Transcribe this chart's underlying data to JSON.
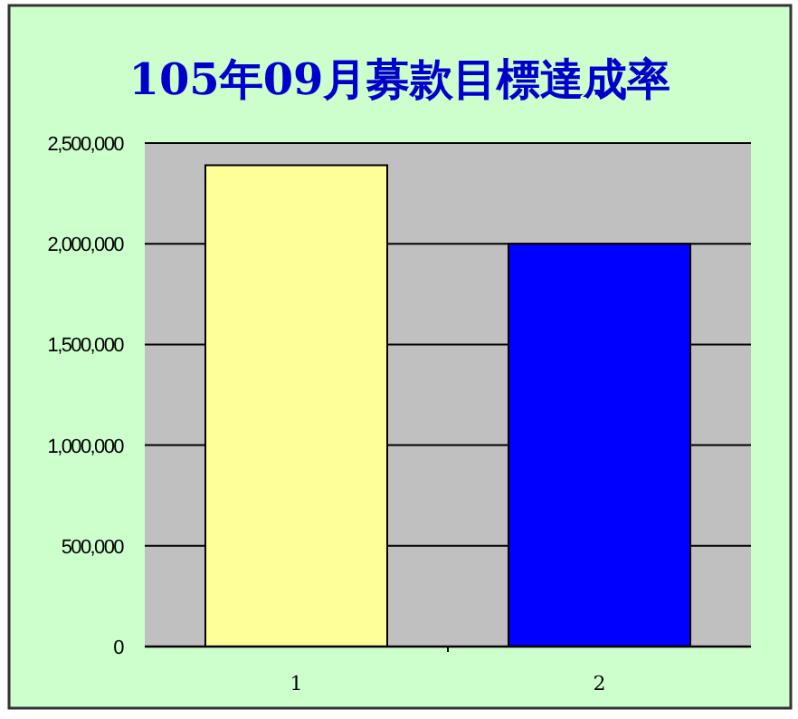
{
  "chart_data": {
    "type": "bar",
    "title": "105年09月募款目標達成率",
    "categories": [
      "1",
      "2"
    ],
    "values": [
      2390000,
      2000000
    ],
    "colors": [
      "#ffff99",
      "#0000ff"
    ],
    "ylim": [
      0,
      2500000
    ],
    "yticks": [
      {
        "value": 0,
        "label": "0"
      },
      {
        "value": 500000,
        "label": "500,000"
      },
      {
        "value": 1000000,
        "label": "1,000,000"
      },
      {
        "value": 1500000,
        "label": "1,500,000"
      },
      {
        "value": 2000000,
        "label": "2,000,000"
      },
      {
        "value": 2500000,
        "label": "2,500,000"
      }
    ],
    "grid": "y"
  }
}
